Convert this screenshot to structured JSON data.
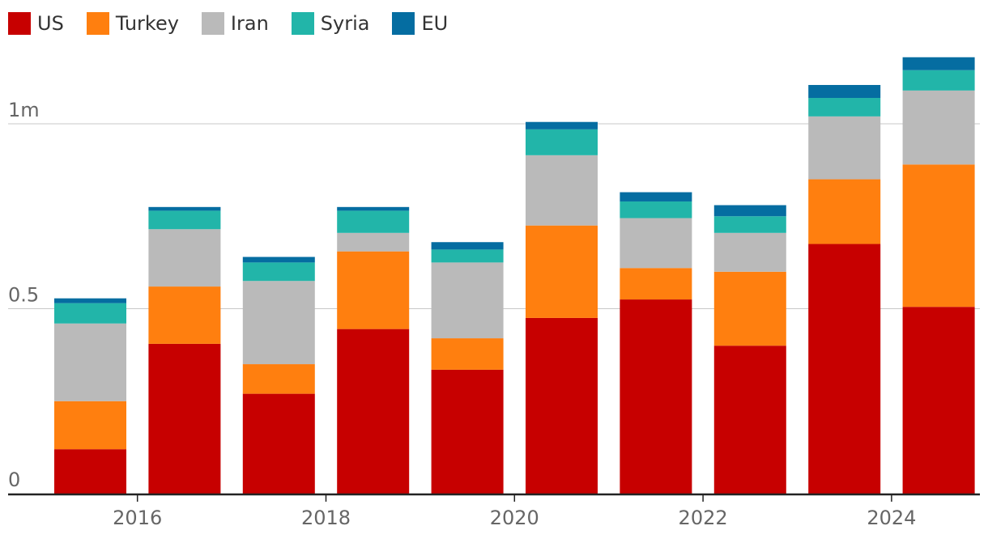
{
  "chart_data": {
    "type": "bar",
    "stacked": true,
    "categories": [
      "2015",
      "2016",
      "2017",
      "2018",
      "2019",
      "2020",
      "2021",
      "2022",
      "2023",
      "2024"
    ],
    "x_tick_labels": [
      "2016",
      "2018",
      "2020",
      "2022",
      "2024"
    ],
    "y_ticks": [
      {
        "value": 0,
        "label": "0"
      },
      {
        "value": 0.5,
        "label": "0.5"
      },
      {
        "value": 1,
        "label": "1m"
      }
    ],
    "ylim": [
      0,
      1.2
    ],
    "grid": true,
    "legend_position": "top-left",
    "series": [
      {
        "name": "US",
        "color": "#c70000",
        "values": [
          0.12,
          0.405,
          0.27,
          0.445,
          0.335,
          0.475,
          0.525,
          0.4,
          0.675,
          0.505
        ]
      },
      {
        "name": "Turkey",
        "color": "#ff7f0f",
        "values": [
          0.13,
          0.155,
          0.08,
          0.21,
          0.085,
          0.25,
          0.085,
          0.2,
          0.175,
          0.385
        ]
      },
      {
        "name": "Iran",
        "color": "#bababa",
        "values": [
          0.21,
          0.155,
          0.225,
          0.05,
          0.205,
          0.19,
          0.135,
          0.105,
          0.17,
          0.2
        ]
      },
      {
        "name": "Syria",
        "color": "#22b5a9",
        "values": [
          0.055,
          0.05,
          0.05,
          0.06,
          0.035,
          0.07,
          0.045,
          0.045,
          0.05,
          0.055
        ]
      },
      {
        "name": "EU",
        "color": "#056da1",
        "values": [
          0.013,
          0.01,
          0.015,
          0.01,
          0.02,
          0.02,
          0.025,
          0.03,
          0.035,
          0.035
        ]
      }
    ]
  }
}
